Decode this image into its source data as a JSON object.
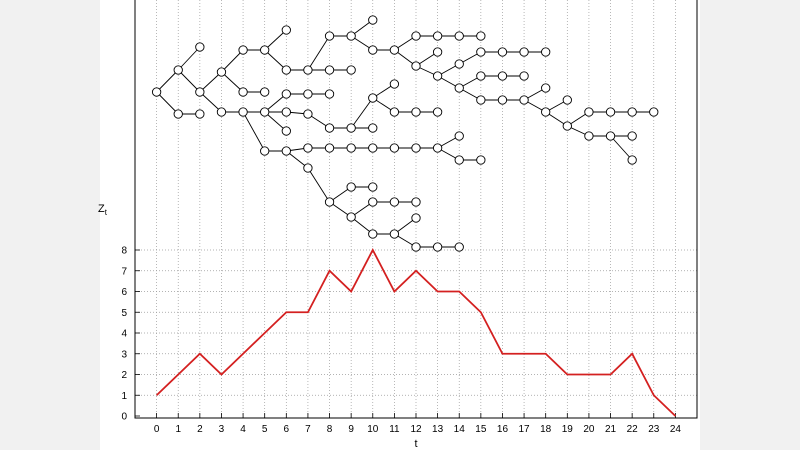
{
  "chart_data": {
    "type": "line",
    "title": "",
    "xlabel": "t",
    "ylabel": "Z",
    "ylabel_subscript": "t",
    "xlim": [
      -1,
      25
    ],
    "ylim": [
      0,
      8
    ],
    "grid": true,
    "x_ticks": [
      0,
      1,
      2,
      3,
      4,
      5,
      6,
      7,
      8,
      9,
      10,
      11,
      12,
      13,
      14,
      15,
      16,
      17,
      18,
      19,
      20,
      21,
      22,
      23,
      24
    ],
    "y_ticks": [
      0,
      1,
      2,
      3,
      4,
      5,
      6,
      7,
      8
    ],
    "series": [
      {
        "color": "#d42020",
        "x": [
          0,
          1,
          2,
          3,
          4,
          5,
          6,
          7,
          8,
          9,
          10,
          11,
          12,
          13,
          14,
          15,
          16,
          17,
          18,
          19,
          20,
          21,
          22,
          23,
          24
        ],
        "values": [
          1,
          2,
          3,
          2,
          3,
          4,
          5,
          5,
          7,
          6,
          8,
          6,
          7,
          6,
          6,
          5,
          3,
          3,
          3,
          2,
          2,
          2,
          3,
          1,
          0
        ]
      }
    ],
    "tree": {
      "description_free": true,
      "node_color": "#ffffff",
      "edge_color": "#000000"
    }
  }
}
